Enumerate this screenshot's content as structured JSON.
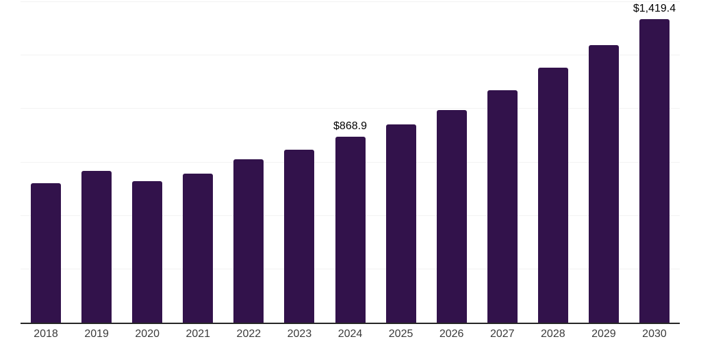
{
  "chart_data": {
    "type": "bar",
    "categories": [
      "2018",
      "2019",
      "2020",
      "2021",
      "2022",
      "2023",
      "2024",
      "2025",
      "2026",
      "2027",
      "2028",
      "2029",
      "2030"
    ],
    "values": [
      654,
      710,
      661,
      698,
      765,
      808,
      868.9,
      929,
      996,
      1089,
      1192,
      1300,
      1419.4
    ],
    "value_labels": {
      "2024": "$868.9",
      "2030": "$1,419.4"
    },
    "title": "",
    "xlabel": "",
    "ylabel": "",
    "ylim": [
      0,
      1500
    ],
    "gridline_step": 250,
    "grid": true,
    "legend": false,
    "colors": {
      "bar": "#32124b",
      "gridline": "#f2f2f2",
      "axis_line": "#262626",
      "value_label": "#000000",
      "tick_label": "#3a3a3a",
      "background": "#ffffff"
    }
  }
}
